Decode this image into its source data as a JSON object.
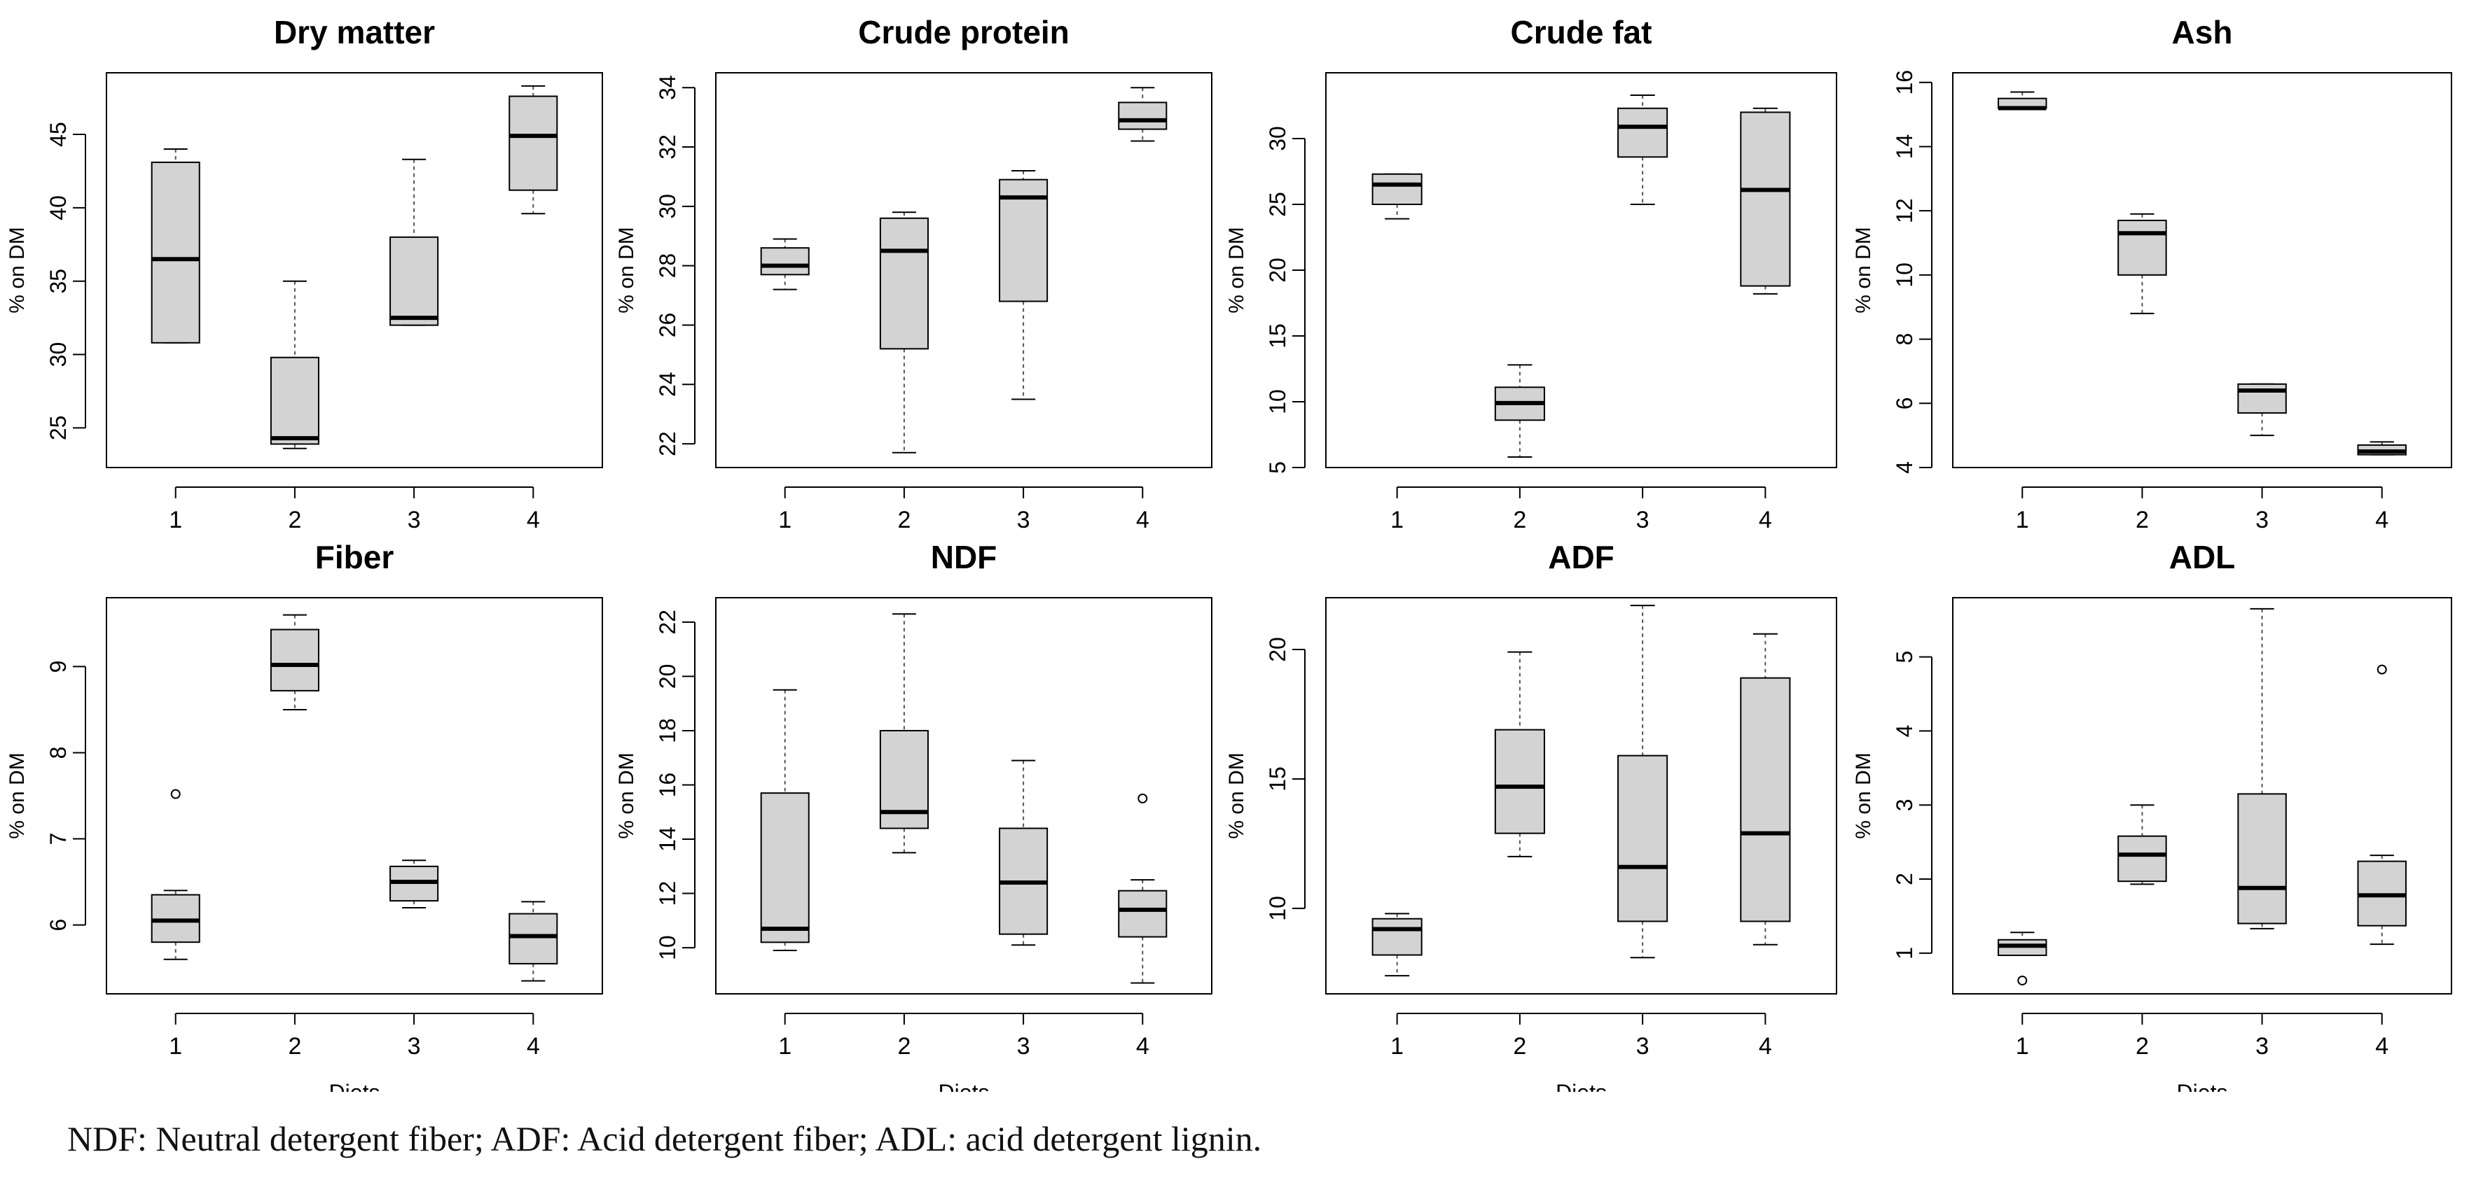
{
  "caption": "NDF: Neutral detergent fiber; ADF: Acid detergent fiber; ADL: acid detergent lignin.",
  "colors": {
    "box_fill": "#d3d3d3",
    "stroke": "#000000",
    "whisker": "#555555"
  },
  "chart_data": [
    {
      "type": "boxplot",
      "title": "Dry matter",
      "ylabel": "% on DM",
      "xlabel": "",
      "ylim": [
        22.3,
        49.2
      ],
      "yticks": [
        25,
        30,
        35,
        40,
        45
      ],
      "categories": [
        "1",
        "2",
        "3",
        "4"
      ],
      "boxes": [
        {
          "min": 30.8,
          "q1": 30.8,
          "median": 36.5,
          "q3": 43.1,
          "max": 44.0,
          "outliers": []
        },
        {
          "min": 23.6,
          "q1": 23.9,
          "median": 24.3,
          "q3": 29.8,
          "max": 35.0,
          "outliers": []
        },
        {
          "min": 32.0,
          "q1": 32.0,
          "median": 32.5,
          "q3": 38.0,
          "max": 43.3,
          "outliers": []
        },
        {
          "min": 39.6,
          "q1": 41.2,
          "median": 44.9,
          "q3": 47.6,
          "max": 48.3,
          "outliers": []
        }
      ]
    },
    {
      "type": "boxplot",
      "title": "Crude protein",
      "ylabel": "% on DM",
      "xlabel": "",
      "ylim": [
        21.2,
        34.5
      ],
      "yticks": [
        22,
        24,
        26,
        28,
        30,
        32,
        34
      ],
      "categories": [
        "1",
        "2",
        "3",
        "4"
      ],
      "boxes": [
        {
          "min": 27.2,
          "q1": 27.7,
          "median": 28.0,
          "q3": 28.6,
          "max": 28.9,
          "outliers": []
        },
        {
          "min": 21.7,
          "q1": 25.2,
          "median": 28.5,
          "q3": 29.6,
          "max": 29.8,
          "outliers": []
        },
        {
          "min": 23.5,
          "q1": 26.8,
          "median": 30.3,
          "q3": 30.9,
          "max": 31.2,
          "outliers": []
        },
        {
          "min": 32.2,
          "q1": 32.6,
          "median": 32.9,
          "q3": 33.5,
          "max": 34.0,
          "outliers": []
        }
      ]
    },
    {
      "type": "boxplot",
      "title": "Crude fat",
      "ylabel": "% on DM",
      "xlabel": "",
      "ylim": [
        5.0,
        35.0
      ],
      "yticks": [
        5,
        10,
        15,
        20,
        25,
        30
      ],
      "categories": [
        "1",
        "2",
        "3",
        "4"
      ],
      "boxes": [
        {
          "min": 23.9,
          "q1": 25.0,
          "median": 26.5,
          "q3": 27.3,
          "max": 27.3,
          "outliers": []
        },
        {
          "min": 5.8,
          "q1": 8.6,
          "median": 9.9,
          "q3": 11.1,
          "max": 12.8,
          "outliers": []
        },
        {
          "min": 25.0,
          "q1": 28.6,
          "median": 30.9,
          "q3": 32.3,
          "max": 33.3,
          "outliers": []
        },
        {
          "min": 18.2,
          "q1": 18.8,
          "median": 26.1,
          "q3": 32.0,
          "max": 32.3,
          "outliers": []
        }
      ]
    },
    {
      "type": "boxplot",
      "title": "Ash",
      "ylabel": "% on DM",
      "xlabel": "",
      "ylim": [
        4.0,
        16.3
      ],
      "yticks": [
        4,
        6,
        8,
        10,
        12,
        14,
        16
      ],
      "categories": [
        "1",
        "2",
        "3",
        "4"
      ],
      "boxes": [
        {
          "min": 15.2,
          "q1": 15.2,
          "median": 15.2,
          "q3": 15.5,
          "max": 15.7,
          "outliers": []
        },
        {
          "min": 8.8,
          "q1": 10.0,
          "median": 11.3,
          "q3": 11.7,
          "max": 11.9,
          "outliers": []
        },
        {
          "min": 5.0,
          "q1": 5.7,
          "median": 6.4,
          "q3": 6.6,
          "max": 6.6,
          "outliers": []
        },
        {
          "min": 4.4,
          "q1": 4.4,
          "median": 4.5,
          "q3": 4.7,
          "max": 4.8,
          "outliers": []
        }
      ]
    },
    {
      "type": "boxplot",
      "title": "Fiber",
      "ylabel": "% on DM",
      "xlabel": "Diets",
      "ylim": [
        5.2,
        9.8
      ],
      "yticks": [
        6,
        7,
        8,
        9
      ],
      "categories": [
        "1",
        "2",
        "3",
        "4"
      ],
      "boxes": [
        {
          "min": 5.6,
          "q1": 5.8,
          "median": 6.05,
          "q3": 6.35,
          "max": 6.4,
          "outliers": [
            7.52
          ]
        },
        {
          "min": 8.5,
          "q1": 8.72,
          "median": 9.02,
          "q3": 9.43,
          "max": 9.6,
          "outliers": []
        },
        {
          "min": 6.2,
          "q1": 6.28,
          "median": 6.5,
          "q3": 6.68,
          "max": 6.75,
          "outliers": []
        },
        {
          "min": 5.35,
          "q1": 5.55,
          "median": 5.87,
          "q3": 6.13,
          "max": 6.27,
          "outliers": []
        }
      ]
    },
    {
      "type": "boxplot",
      "title": "NDF",
      "ylabel": "% on DM",
      "xlabel": "Diets",
      "ylim": [
        8.3,
        22.9
      ],
      "yticks": [
        10,
        12,
        14,
        16,
        18,
        20,
        22
      ],
      "categories": [
        "1",
        "2",
        "3",
        "4"
      ],
      "boxes": [
        {
          "min": 9.9,
          "q1": 10.2,
          "median": 10.7,
          "q3": 15.7,
          "max": 19.5,
          "outliers": []
        },
        {
          "min": 13.5,
          "q1": 14.4,
          "median": 15.0,
          "q3": 18.0,
          "max": 22.3,
          "outliers": []
        },
        {
          "min": 10.1,
          "q1": 10.5,
          "median": 12.4,
          "q3": 14.4,
          "max": 16.9,
          "outliers": []
        },
        {
          "min": 8.7,
          "q1": 10.4,
          "median": 11.4,
          "q3": 12.1,
          "max": 12.5,
          "outliers": [
            15.5
          ]
        }
      ]
    },
    {
      "type": "boxplot",
      "title": "ADF",
      "ylabel": "% on DM",
      "xlabel": "Diets",
      "ylim": [
        6.7,
        22.0
      ],
      "yticks": [
        10,
        15,
        20
      ],
      "categories": [
        "1",
        "2",
        "3",
        "4"
      ],
      "boxes": [
        {
          "min": 7.4,
          "q1": 8.2,
          "median": 9.2,
          "q3": 9.6,
          "max": 9.8,
          "outliers": []
        },
        {
          "min": 12.0,
          "q1": 12.9,
          "median": 14.7,
          "q3": 16.9,
          "max": 19.9,
          "outliers": []
        },
        {
          "min": 8.1,
          "q1": 9.5,
          "median": 11.6,
          "q3": 15.9,
          "max": 21.7,
          "outliers": []
        },
        {
          "min": 8.6,
          "q1": 9.5,
          "median": 12.9,
          "q3": 18.9,
          "max": 20.6,
          "outliers": []
        }
      ]
    },
    {
      "type": "boxplot",
      "title": "ADL",
      "ylabel": "% on DM",
      "xlabel": "Diets",
      "ylim": [
        0.45,
        5.8
      ],
      "yticks": [
        1,
        2,
        3,
        4,
        5
      ],
      "categories": [
        "1",
        "2",
        "3",
        "4"
      ],
      "boxes": [
        {
          "min": 0.97,
          "q1": 0.97,
          "median": 1.1,
          "q3": 1.18,
          "max": 1.28,
          "outliers": [
            0.63
          ]
        },
        {
          "min": 1.93,
          "q1": 1.97,
          "median": 2.33,
          "q3": 2.58,
          "max": 3.0,
          "outliers": []
        },
        {
          "min": 1.33,
          "q1": 1.4,
          "median": 1.88,
          "q3": 3.15,
          "max": 5.65,
          "outliers": []
        },
        {
          "min": 1.12,
          "q1": 1.37,
          "median": 1.78,
          "q3": 2.24,
          "max": 2.32,
          "outliers": [
            4.83
          ]
        }
      ]
    }
  ]
}
